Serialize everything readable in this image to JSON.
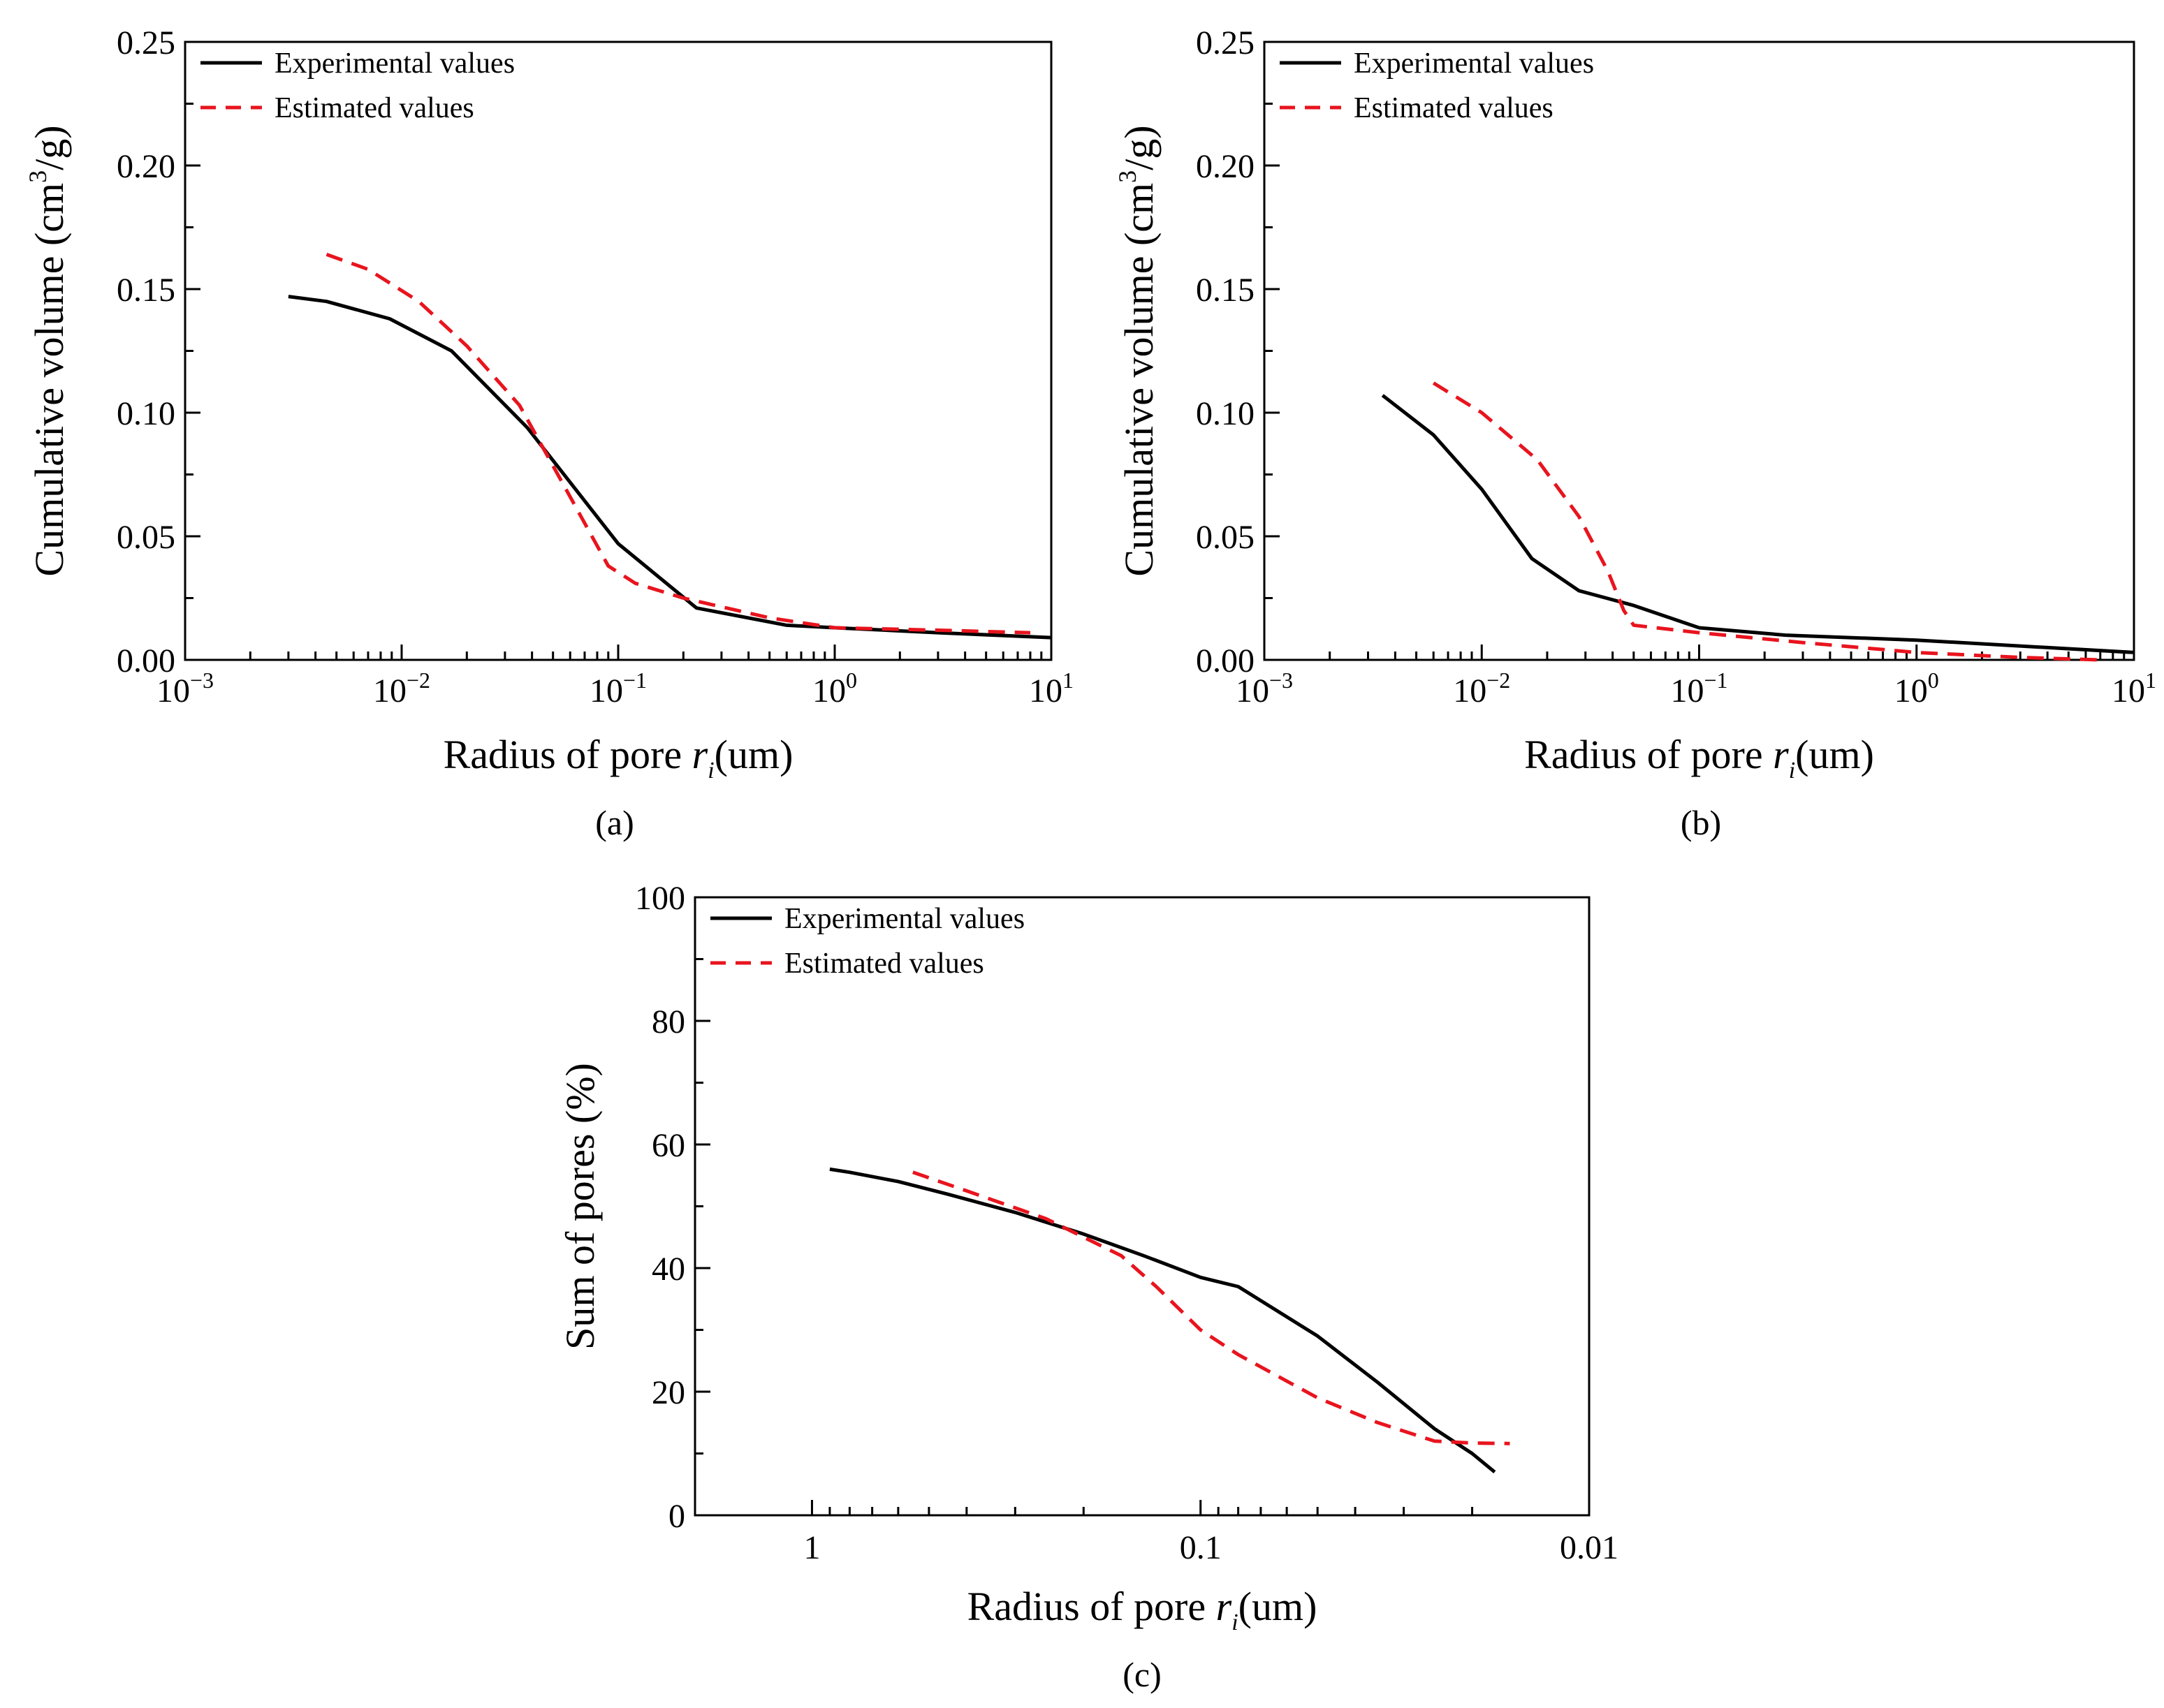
{
  "chart_data": [
    {
      "type": "line",
      "panel_label": "(a)",
      "xscale": "log",
      "xlim_exp": [
        -3,
        1
      ],
      "x_ticks": [
        {
          "base": "10",
          "exp": "−3"
        },
        {
          "base": "10",
          "exp": "−2"
        },
        {
          "base": "10",
          "exp": "−1"
        },
        {
          "base": "10",
          "exp": "0"
        },
        {
          "base": "10",
          "exp": "1"
        }
      ],
      "ylim": [
        0,
        0.25
      ],
      "y_ticks": [
        "0.00",
        "0.05",
        "0.10",
        "0.15",
        "0.20",
        "0.25"
      ],
      "y_tick_values": [
        0,
        0.05,
        0.1,
        0.15,
        0.2,
        0.25
      ],
      "xlabel": {
        "main": "Radius of pore ",
        "var": "r",
        "sub": "i",
        "unit": "(um)"
      },
      "ylabel": {
        "pre": "Cumulative volume (cm",
        "sup": "3",
        "post": "/g)"
      },
      "legend_position": "top-left",
      "series": [
        {
          "name": "Experimental values",
          "color": "#000000",
          "dash": false,
          "x": [
            0.003,
            0.0045,
            0.0088,
            0.017,
            0.038,
            0.1,
            0.23,
            0.6,
            1.0,
            3.0,
            10.0
          ],
          "y": [
            0.147,
            0.145,
            0.138,
            0.125,
            0.094,
            0.047,
            0.021,
            0.014,
            0.013,
            0.011,
            0.009
          ]
        },
        {
          "name": "Estimated values",
          "color": "#e8141e",
          "dash": true,
          "x": [
            0.0045,
            0.007,
            0.012,
            0.02,
            0.035,
            0.06,
            0.09,
            0.12,
            0.2,
            0.5,
            1.0,
            3.0,
            8.0
          ],
          "y": [
            0.164,
            0.158,
            0.145,
            0.127,
            0.103,
            0.066,
            0.038,
            0.031,
            0.025,
            0.017,
            0.013,
            0.012,
            0.011
          ]
        }
      ]
    },
    {
      "type": "line",
      "panel_label": "(b)",
      "xscale": "log",
      "xlim_exp": [
        -3,
        1
      ],
      "x_ticks": [
        {
          "base": "10",
          "exp": "−3"
        },
        {
          "base": "10",
          "exp": "−2"
        },
        {
          "base": "10",
          "exp": "−1"
        },
        {
          "base": "10",
          "exp": "0"
        },
        {
          "base": "10",
          "exp": "1"
        }
      ],
      "ylim": [
        0,
        0.25
      ],
      "y_ticks": [
        "0.00",
        "0.05",
        "0.10",
        "0.15",
        "0.20",
        "0.25"
      ],
      "y_tick_values": [
        0,
        0.05,
        0.1,
        0.15,
        0.2,
        0.25
      ],
      "xlabel": {
        "main": "Radius of pore ",
        "var": "r",
        "sub": "i",
        "unit": "(um)"
      },
      "ylabel": {
        "pre": "Cumulative volume (cm",
        "sup": "3",
        "post": "/g)"
      },
      "legend_position": "top-left",
      "series": [
        {
          "name": "Experimental values",
          "color": "#000000",
          "dash": false,
          "x": [
            0.0035,
            0.006,
            0.01,
            0.017,
            0.028,
            0.05,
            0.1,
            0.25,
            1.0,
            10.0
          ],
          "y": [
            0.107,
            0.091,
            0.069,
            0.041,
            0.028,
            0.022,
            0.013,
            0.01,
            0.008,
            0.003
          ]
        },
        {
          "name": "Estimated values",
          "color": "#e8141e",
          "dash": true,
          "x": [
            0.006,
            0.01,
            0.018,
            0.028,
            0.038,
            0.045,
            0.05,
            0.1,
            0.3,
            1.0,
            3.0,
            7.0
          ],
          "y": [
            0.112,
            0.1,
            0.081,
            0.058,
            0.036,
            0.02,
            0.014,
            0.011,
            0.007,
            0.003,
            0.001,
            0.0
          ]
        }
      ]
    },
    {
      "type": "line",
      "panel_label": "(c)",
      "xscale": "log-reversed",
      "xlim": [
        2.0,
        0.01
      ],
      "x_ticks": [
        "1",
        "0.1",
        "0.01"
      ],
      "x_tick_values": [
        1,
        0.1,
        0.01
      ],
      "ylim": [
        0,
        100
      ],
      "y_ticks": [
        "0",
        "20",
        "40",
        "60",
        "80",
        "100"
      ],
      "y_tick_values": [
        0,
        20,
        40,
        60,
        80,
        100
      ],
      "xlabel": {
        "main": "Radius of pore ",
        "var": "r",
        "sub": "i",
        "unit": "(um)"
      },
      "ylabel": {
        "pre": "Sum of pores (%)",
        "sup": "",
        "post": ""
      },
      "legend_position": "top-left",
      "series": [
        {
          "name": "Experimental values",
          "color": "#000000",
          "dash": false,
          "x": [
            0.9,
            0.8,
            0.6,
            0.45,
            0.3,
            0.2,
            0.14,
            0.1,
            0.08,
            0.05,
            0.035,
            0.025,
            0.02,
            0.0175
          ],
          "y": [
            56,
            55.5,
            54,
            52,
            49,
            45.5,
            42,
            38.5,
            37,
            29,
            21.5,
            14,
            10,
            7
          ]
        },
        {
          "name": "Estimated values",
          "color": "#e8141e",
          "dash": true,
          "x": [
            0.55,
            0.4,
            0.25,
            0.16,
            0.13,
            0.1,
            0.08,
            0.05,
            0.035,
            0.025,
            0.02,
            0.016
          ],
          "y": [
            55.5,
            52.5,
            48,
            42,
            37,
            30,
            26,
            19,
            15,
            12,
            11.7,
            11.6
          ]
        }
      ]
    }
  ]
}
